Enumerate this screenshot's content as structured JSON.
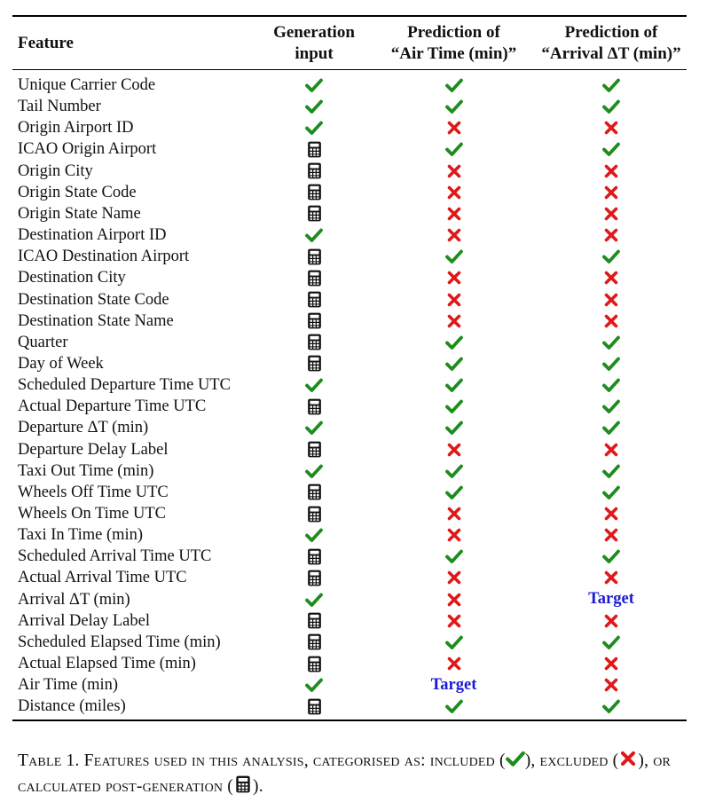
{
  "table": {
    "headers": {
      "feature": "Feature",
      "gen_input": [
        "Generation",
        "input"
      ],
      "air_time": [
        "Prediction of",
        "“Air Time (min)”"
      ],
      "arrival": [
        "Prediction of",
        "“Arrival ΔT (min)”"
      ]
    },
    "target_label": "Target",
    "icon_names": {
      "included": "check-icon",
      "excluded": "cross-icon",
      "calculated": "calculator-icon"
    },
    "colors": {
      "check": "#1e8c1e",
      "cross": "#e01818",
      "target": "#1a1ad6"
    },
    "rows": [
      {
        "feature": "Unique Carrier Code",
        "gen_input": "included",
        "air_time": "included",
        "arrival": "included"
      },
      {
        "feature": "Tail Number",
        "gen_input": "included",
        "air_time": "included",
        "arrival": "included"
      },
      {
        "feature": "Origin Airport ID",
        "gen_input": "included",
        "air_time": "excluded",
        "arrival": "excluded"
      },
      {
        "feature": "ICAO Origin Airport",
        "gen_input": "calculated",
        "air_time": "included",
        "arrival": "included"
      },
      {
        "feature": "Origin City",
        "gen_input": "calculated",
        "air_time": "excluded",
        "arrival": "excluded"
      },
      {
        "feature": "Origin State Code",
        "gen_input": "calculated",
        "air_time": "excluded",
        "arrival": "excluded"
      },
      {
        "feature": "Origin State Name",
        "gen_input": "calculated",
        "air_time": "excluded",
        "arrival": "excluded"
      },
      {
        "feature": "Destination Airport ID",
        "gen_input": "included",
        "air_time": "excluded",
        "arrival": "excluded"
      },
      {
        "feature": "ICAO Destination Airport",
        "gen_input": "calculated",
        "air_time": "included",
        "arrival": "included"
      },
      {
        "feature": "Destination City",
        "gen_input": "calculated",
        "air_time": "excluded",
        "arrival": "excluded"
      },
      {
        "feature": "Destination State Code",
        "gen_input": "calculated",
        "air_time": "excluded",
        "arrival": "excluded"
      },
      {
        "feature": "Destination State Name",
        "gen_input": "calculated",
        "air_time": "excluded",
        "arrival": "excluded"
      },
      {
        "feature": "Quarter",
        "gen_input": "calculated",
        "air_time": "included",
        "arrival": "included"
      },
      {
        "feature": "Day of Week",
        "gen_input": "calculated",
        "air_time": "included",
        "arrival": "included"
      },
      {
        "feature": "Scheduled Departure Time UTC",
        "gen_input": "included",
        "air_time": "included",
        "arrival": "included"
      },
      {
        "feature": "Actual Departure Time UTC",
        "gen_input": "calculated",
        "air_time": "included",
        "arrival": "included"
      },
      {
        "feature": "Departure ΔT (min)",
        "gen_input": "included",
        "air_time": "included",
        "arrival": "included"
      },
      {
        "feature": "Departure Delay Label",
        "gen_input": "calculated",
        "air_time": "excluded",
        "arrival": "excluded"
      },
      {
        "feature": "Taxi Out Time (min)",
        "gen_input": "included",
        "air_time": "included",
        "arrival": "included"
      },
      {
        "feature": "Wheels Off Time UTC",
        "gen_input": "calculated",
        "air_time": "included",
        "arrival": "included"
      },
      {
        "feature": "Wheels On Time UTC",
        "gen_input": "calculated",
        "air_time": "excluded",
        "arrival": "excluded"
      },
      {
        "feature": "Taxi In Time (min)",
        "gen_input": "included",
        "air_time": "excluded",
        "arrival": "excluded"
      },
      {
        "feature": "Scheduled Arrival Time UTC",
        "gen_input": "calculated",
        "air_time": "included",
        "arrival": "included"
      },
      {
        "feature": "Actual Arrival Time UTC",
        "gen_input": "calculated",
        "air_time": "excluded",
        "arrival": "excluded"
      },
      {
        "feature": "Arrival ΔT (min)",
        "gen_input": "included",
        "air_time": "excluded",
        "arrival": "target"
      },
      {
        "feature": "Arrival Delay Label",
        "gen_input": "calculated",
        "air_time": "excluded",
        "arrival": "excluded"
      },
      {
        "feature": "Scheduled Elapsed Time (min)",
        "gen_input": "calculated",
        "air_time": "included",
        "arrival": "included"
      },
      {
        "feature": "Actual Elapsed Time (min)",
        "gen_input": "calculated",
        "air_time": "excluded",
        "arrival": "excluded"
      },
      {
        "feature": "Air Time (min)",
        "gen_input": "included",
        "air_time": "target",
        "arrival": "excluded"
      },
      {
        "feature": "Distance (miles)",
        "gen_input": "calculated",
        "air_time": "included",
        "arrival": "included"
      }
    ]
  },
  "caption": {
    "label": "Table 1.",
    "text_1": "Features used in this analysis, categorised as: included (",
    "text_2": "), excluded (",
    "text_3": "), or calculated post-generation (",
    "text_4": ")."
  }
}
